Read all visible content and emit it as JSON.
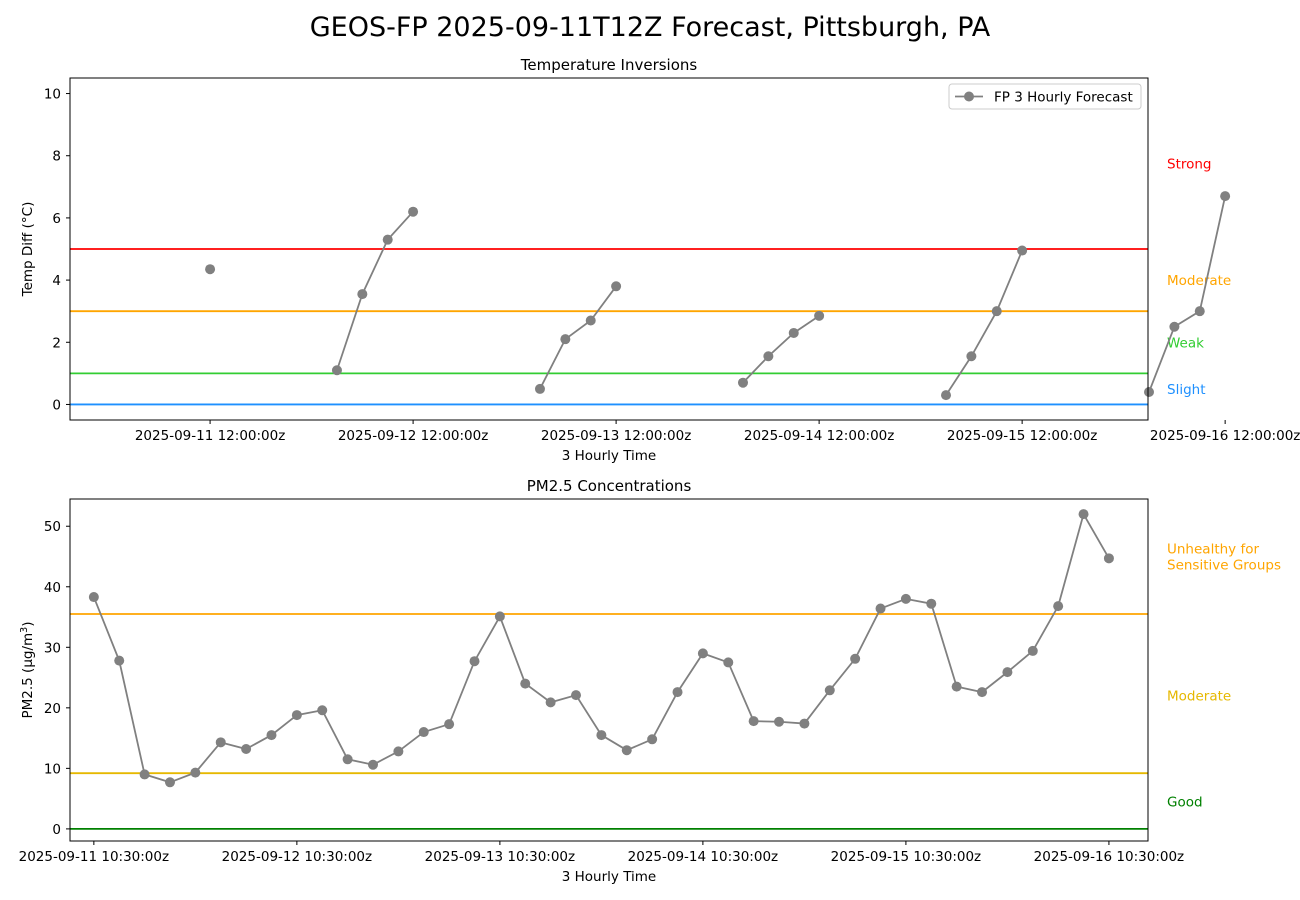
{
  "suptitle": "GEOS-FP 2025-09-11T12Z Forecast, Pittsburgh, PA",
  "chart_data": [
    {
      "type": "line",
      "title": "Temperature Inversions",
      "xlabel": "3 Hourly Time",
      "ylabel": "Temp Diff (°C)",
      "ylim": [
        -0.5,
        10.5
      ],
      "yticks": [
        0,
        2,
        4,
        6,
        8,
        10
      ],
      "xlim_days": [
        -0.19,
        5.12
      ],
      "xticks": [
        "2025-09-11 12:00:00z",
        "2025-09-12 12:00:00z",
        "2025-09-13 12:00:00z",
        "2025-09-14 12:00:00z",
        "2025-09-15 12:00:00z",
        "2025-09-16 12:00:00z"
      ],
      "legend": {
        "label": "FP 3 Hourly Forecast",
        "position": "upper right"
      },
      "series": [
        {
          "name": "FP 3 Hourly Forecast",
          "color": "#808080",
          "segments": [
            [
              {
                "x": "2025-09-11 12:00:00z",
                "y": 4.35
              }
            ],
            [
              {
                "x": "2025-09-12 03:00:00z",
                "y": 1.1
              },
              {
                "x": "2025-09-12 06:00:00z",
                "y": 3.55
              },
              {
                "x": "2025-09-12 09:00:00z",
                "y": 5.3
              },
              {
                "x": "2025-09-12 12:00:00z",
                "y": 6.2
              }
            ],
            [
              {
                "x": "2025-09-13 03:00:00z",
                "y": 0.5
              },
              {
                "x": "2025-09-13 06:00:00z",
                "y": 2.1
              },
              {
                "x": "2025-09-13 09:00:00z",
                "y": 2.7
              },
              {
                "x": "2025-09-13 12:00:00z",
                "y": 3.8
              }
            ],
            [
              {
                "x": "2025-09-14 03:00:00z",
                "y": 0.7
              },
              {
                "x": "2025-09-14 06:00:00z",
                "y": 1.55
              },
              {
                "x": "2025-09-14 09:00:00z",
                "y": 2.3
              },
              {
                "x": "2025-09-14 12:00:00z",
                "y": 2.85
              }
            ],
            [
              {
                "x": "2025-09-15 03:00:00z",
                "y": 0.3
              },
              {
                "x": "2025-09-15 06:00:00z",
                "y": 1.55
              },
              {
                "x": "2025-09-15 09:00:00z",
                "y": 3.0
              },
              {
                "x": "2025-09-15 12:00:00z",
                "y": 4.95
              }
            ],
            [
              {
                "x": "2025-09-16 03:00:00z",
                "y": 0.4
              },
              {
                "x": "2025-09-16 06:00:00z",
                "y": 2.5
              },
              {
                "x": "2025-09-16 09:00:00z",
                "y": 3.0
              },
              {
                "x": "2025-09-16 12:00:00z",
                "y": 6.7
              }
            ]
          ]
        }
      ],
      "thresholds": [
        {
          "value": 0,
          "label": "Slight",
          "color": "#1e90ff",
          "label_y": 0.5
        },
        {
          "value": 1,
          "label": "Weak",
          "color": "#32cd32",
          "label_y": 2.0
        },
        {
          "value": 3,
          "label": "Moderate",
          "color": "#ffa500",
          "label_y": 4.0
        },
        {
          "value": 5,
          "label": "Strong",
          "color": "#ff0000",
          "label_y": 7.75
        }
      ]
    },
    {
      "type": "line",
      "title": "PM2.5 Concentrations",
      "xlabel": "3 Hourly Time",
      "ylabel": "PM2.5 (µg/m3)",
      "ylim": [
        -2,
        54.5
      ],
      "yticks": [
        0,
        10,
        20,
        30,
        40,
        50
      ],
      "xticks": [
        "2025-09-11 10:30:00z",
        "2025-09-12 10:30:00z",
        "2025-09-13 10:30:00z",
        "2025-09-14 10:30:00z",
        "2025-09-15 10:30:00z",
        "2025-09-16 10:30:00z"
      ],
      "series": [
        {
          "name": "FP 3 Hourly Forecast",
          "color": "#808080",
          "points": [
            {
              "x": "2025-09-11 10:30:00z",
              "y": 38.3
            },
            {
              "x": "2025-09-11 13:30:00z",
              "y": 27.8
            },
            {
              "x": "2025-09-11 16:30:00z",
              "y": 9.0
            },
            {
              "x": "2025-09-11 19:30:00z",
              "y": 7.7
            },
            {
              "x": "2025-09-11 22:30:00z",
              "y": 9.3
            },
            {
              "x": "2025-09-12 01:30:00z",
              "y": 14.3
            },
            {
              "x": "2025-09-12 04:30:00z",
              "y": 13.2
            },
            {
              "x": "2025-09-12 07:30:00z",
              "y": 15.5
            },
            {
              "x": "2025-09-12 10:30:00z",
              "y": 18.8
            },
            {
              "x": "2025-09-12 13:30:00z",
              "y": 19.6
            },
            {
              "x": "2025-09-12 16:30:00z",
              "y": 11.5
            },
            {
              "x": "2025-09-12 19:30:00z",
              "y": 10.6
            },
            {
              "x": "2025-09-12 22:30:00z",
              "y": 12.8
            },
            {
              "x": "2025-09-13 01:30:00z",
              "y": 16.0
            },
            {
              "x": "2025-09-13 04:30:00z",
              "y": 17.3
            },
            {
              "x": "2025-09-13 07:30:00z",
              "y": 27.7
            },
            {
              "x": "2025-09-13 10:30:00z",
              "y": 35.1
            },
            {
              "x": "2025-09-13 13:30:00z",
              "y": 24.0
            },
            {
              "x": "2025-09-13 16:30:00z",
              "y": 20.9
            },
            {
              "x": "2025-09-13 19:30:00z",
              "y": 22.1
            },
            {
              "x": "2025-09-13 22:30:00z",
              "y": 15.5
            },
            {
              "x": "2025-09-14 01:30:00z",
              "y": 13.0
            },
            {
              "x": "2025-09-14 04:30:00z",
              "y": 14.8
            },
            {
              "x": "2025-09-14 07:30:00z",
              "y": 22.6
            },
            {
              "x": "2025-09-14 10:30:00z",
              "y": 29.0
            },
            {
              "x": "2025-09-14 13:30:00z",
              "y": 27.5
            },
            {
              "x": "2025-09-14 16:30:00z",
              "y": 17.8
            },
            {
              "x": "2025-09-14 19:30:00z",
              "y": 17.7
            },
            {
              "x": "2025-09-14 22:30:00z",
              "y": 17.4
            },
            {
              "x": "2025-09-15 01:30:00z",
              "y": 22.9
            },
            {
              "x": "2025-09-15 04:30:00z",
              "y": 28.1
            },
            {
              "x": "2025-09-15 07:30:00z",
              "y": 36.4
            },
            {
              "x": "2025-09-15 10:30:00z",
              "y": 38.0
            },
            {
              "x": "2025-09-15 13:30:00z",
              "y": 37.2
            },
            {
              "x": "2025-09-15 16:30:00z",
              "y": 23.5
            },
            {
              "x": "2025-09-15 19:30:00z",
              "y": 22.6
            },
            {
              "x": "2025-09-15 22:30:00z",
              "y": 25.9
            },
            {
              "x": "2025-09-16 01:30:00z",
              "y": 29.4
            },
            {
              "x": "2025-09-16 04:30:00z",
              "y": 36.8
            },
            {
              "x": "2025-09-16 07:30:00z",
              "y": 52.0
            },
            {
              "x": "2025-09-16 10:30:00z",
              "y": 44.7
            }
          ]
        }
      ],
      "thresholds": [
        {
          "value": 0,
          "label": "Good",
          "color": "#008000",
          "label_y": 4.5
        },
        {
          "value": 9.2,
          "label": "Moderate",
          "color": "#e6b800",
          "label_y": 22.0
        },
        {
          "value": 35.5,
          "label": "Unhealthy for\nSensitive Groups",
          "color": "#ffa500",
          "label_y": 45.0
        }
      ]
    }
  ]
}
